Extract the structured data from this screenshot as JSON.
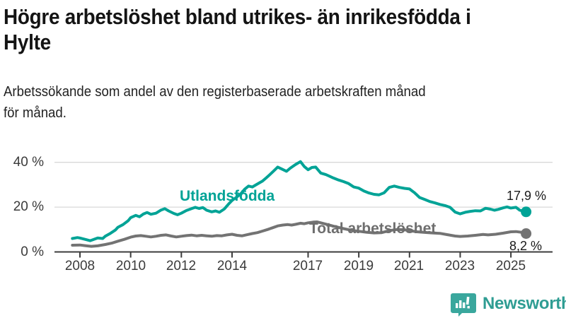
{
  "header": {
    "title_line1": "Högre arbetslöshet bland utrikes- än inrikesfödda i",
    "title_line2": "Hylte",
    "subtitle_line1": "Arbetssökande som andel av den registerbaserade arbetskraften månad",
    "subtitle_line2": "för månad."
  },
  "chart_data": {
    "type": "line",
    "title": "Högre arbetslöshet bland utrikes- än inrikesfödda i Hylte",
    "subtitle": "Arbetssökande som andel av den registerbaserade arbetskraften månad för månad.",
    "xlabel": "",
    "ylabel": "",
    "x_range": [
      2007.7,
      2025.6
    ],
    "ylim": [
      0,
      44
    ],
    "grid": "horizontal",
    "legend_position": "inline-labels",
    "yticks": [
      {
        "value": 0,
        "label": "0 %"
      },
      {
        "value": 20,
        "label": "20 %"
      },
      {
        "value": 40,
        "label": "40 %"
      }
    ],
    "xticks": [
      {
        "year": 2008,
        "label": "2008"
      },
      {
        "year": 2010,
        "label": "2010"
      },
      {
        "year": 2012,
        "label": "2012"
      },
      {
        "year": 2014,
        "label": "2014"
      },
      {
        "year": 2017,
        "label": "2017"
      },
      {
        "year": 2019,
        "label": "2019"
      },
      {
        "year": 2021,
        "label": "2021"
      },
      {
        "year": 2023,
        "label": "2023"
      },
      {
        "year": 2025,
        "label": "2025"
      }
    ],
    "series": [
      {
        "name": "Utlandsfödda",
        "color": "#00a396",
        "end_label": "17,9 %",
        "end_value": 17.9,
        "points": [
          [
            2007.7,
            6.0
          ],
          [
            2007.9,
            6.4
          ],
          [
            2008.0,
            6.2
          ],
          [
            2008.2,
            5.6
          ],
          [
            2008.4,
            5.0
          ],
          [
            2008.5,
            5.4
          ],
          [
            2008.7,
            6.2
          ],
          [
            2008.9,
            6.0
          ],
          [
            2009.0,
            7.0
          ],
          [
            2009.2,
            8.3
          ],
          [
            2009.4,
            9.8
          ],
          [
            2009.5,
            11.0
          ],
          [
            2009.7,
            12.2
          ],
          [
            2009.9,
            13.9
          ],
          [
            2010.0,
            15.3
          ],
          [
            2010.2,
            16.3
          ],
          [
            2010.35,
            15.7
          ],
          [
            2010.5,
            16.9
          ],
          [
            2010.65,
            17.6
          ],
          [
            2010.8,
            16.8
          ],
          [
            2011.0,
            17.3
          ],
          [
            2011.2,
            18.7
          ],
          [
            2011.35,
            19.3
          ],
          [
            2011.5,
            18.3
          ],
          [
            2011.7,
            17.2
          ],
          [
            2011.85,
            16.6
          ],
          [
            2012.0,
            17.3
          ],
          [
            2012.2,
            18.5
          ],
          [
            2012.4,
            19.3
          ],
          [
            2012.55,
            19.9
          ],
          [
            2012.7,
            19.4
          ],
          [
            2012.85,
            19.8
          ],
          [
            2013.0,
            18.6
          ],
          [
            2013.2,
            17.9
          ],
          [
            2013.35,
            18.3
          ],
          [
            2013.5,
            17.7
          ],
          [
            2013.7,
            19.2
          ],
          [
            2013.85,
            21.2
          ],
          [
            2014.0,
            23.0
          ],
          [
            2014.2,
            24.6
          ],
          [
            2014.35,
            26.0
          ],
          [
            2014.5,
            28.0
          ],
          [
            2014.65,
            29.4
          ],
          [
            2014.8,
            29.0
          ],
          [
            2015.0,
            30.3
          ],
          [
            2015.2,
            31.6
          ],
          [
            2015.35,
            33.1
          ],
          [
            2015.5,
            34.6
          ],
          [
            2015.65,
            36.2
          ],
          [
            2015.8,
            37.9
          ],
          [
            2016.0,
            36.8
          ],
          [
            2016.15,
            36.0
          ],
          [
            2016.3,
            37.4
          ],
          [
            2016.5,
            39.0
          ],
          [
            2016.7,
            40.3
          ],
          [
            2016.85,
            38.1
          ],
          [
            2017.0,
            36.7
          ],
          [
            2017.15,
            37.7
          ],
          [
            2017.3,
            37.9
          ],
          [
            2017.5,
            35.2
          ],
          [
            2017.7,
            34.5
          ],
          [
            2017.85,
            33.8
          ],
          [
            2018.0,
            33.0
          ],
          [
            2018.2,
            32.1
          ],
          [
            2018.4,
            31.4
          ],
          [
            2018.6,
            30.5
          ],
          [
            2018.8,
            29.0
          ],
          [
            2019.0,
            28.5
          ],
          [
            2019.2,
            27.2
          ],
          [
            2019.4,
            26.3
          ],
          [
            2019.6,
            25.7
          ],
          [
            2019.8,
            25.5
          ],
          [
            2020.0,
            26.4
          ],
          [
            2020.2,
            28.8
          ],
          [
            2020.4,
            29.4
          ],
          [
            2020.6,
            28.8
          ],
          [
            2020.8,
            28.4
          ],
          [
            2021.0,
            28.1
          ],
          [
            2021.2,
            26.4
          ],
          [
            2021.4,
            24.3
          ],
          [
            2021.6,
            23.4
          ],
          [
            2021.8,
            22.5
          ],
          [
            2022.0,
            21.9
          ],
          [
            2022.2,
            21.2
          ],
          [
            2022.4,
            20.7
          ],
          [
            2022.6,
            19.9
          ],
          [
            2022.8,
            17.8
          ],
          [
            2023.0,
            17.0
          ],
          [
            2023.2,
            17.7
          ],
          [
            2023.4,
            18.1
          ],
          [
            2023.6,
            18.4
          ],
          [
            2023.8,
            18.3
          ],
          [
            2024.0,
            19.5
          ],
          [
            2024.2,
            19.1
          ],
          [
            2024.35,
            18.6
          ],
          [
            2024.5,
            19.0
          ],
          [
            2024.7,
            19.7
          ],
          [
            2024.85,
            20.1
          ],
          [
            2025.0,
            19.6
          ],
          [
            2025.2,
            19.9
          ],
          [
            2025.35,
            18.6
          ],
          [
            2025.6,
            17.9
          ]
        ]
      },
      {
        "name": "Total arbetslöshet",
        "color": "#737373",
        "end_label": "8,2 %",
        "end_value": 8.2,
        "points": [
          [
            2007.7,
            3.0
          ],
          [
            2008.0,
            3.1
          ],
          [
            2008.2,
            2.8
          ],
          [
            2008.45,
            2.5
          ],
          [
            2008.7,
            2.7
          ],
          [
            2009.0,
            3.3
          ],
          [
            2009.25,
            3.9
          ],
          [
            2009.5,
            4.8
          ],
          [
            2009.75,
            5.6
          ],
          [
            2010.0,
            6.6
          ],
          [
            2010.2,
            7.1
          ],
          [
            2010.4,
            7.3
          ],
          [
            2010.6,
            7.0
          ],
          [
            2010.8,
            6.7
          ],
          [
            2011.0,
            7.0
          ],
          [
            2011.2,
            7.4
          ],
          [
            2011.4,
            7.6
          ],
          [
            2011.6,
            7.1
          ],
          [
            2011.8,
            6.7
          ],
          [
            2012.0,
            7.0
          ],
          [
            2012.2,
            7.3
          ],
          [
            2012.4,
            7.5
          ],
          [
            2012.6,
            7.2
          ],
          [
            2012.8,
            7.4
          ],
          [
            2013.0,
            7.2
          ],
          [
            2013.2,
            7.0
          ],
          [
            2013.4,
            7.3
          ],
          [
            2013.6,
            7.2
          ],
          [
            2013.8,
            7.6
          ],
          [
            2014.0,
            7.9
          ],
          [
            2014.2,
            7.4
          ],
          [
            2014.4,
            7.2
          ],
          [
            2014.6,
            7.7
          ],
          [
            2014.8,
            8.2
          ],
          [
            2015.0,
            8.6
          ],
          [
            2015.2,
            9.3
          ],
          [
            2015.4,
            10.0
          ],
          [
            2015.6,
            10.8
          ],
          [
            2015.8,
            11.6
          ],
          [
            2016.0,
            12.0
          ],
          [
            2016.2,
            12.2
          ],
          [
            2016.35,
            12.0
          ],
          [
            2016.5,
            12.3
          ],
          [
            2016.7,
            12.8
          ],
          [
            2016.85,
            12.6
          ],
          [
            2017.0,
            13.0
          ],
          [
            2017.2,
            13.3
          ],
          [
            2017.35,
            13.4
          ],
          [
            2017.5,
            13.0
          ],
          [
            2017.7,
            12.4
          ],
          [
            2017.9,
            11.8
          ],
          [
            2018.1,
            11.2
          ],
          [
            2018.4,
            10.4
          ],
          [
            2018.7,
            9.7
          ],
          [
            2019.0,
            9.2
          ],
          [
            2019.3,
            8.8
          ],
          [
            2019.6,
            8.5
          ],
          [
            2019.9,
            8.6
          ],
          [
            2020.2,
            9.5
          ],
          [
            2020.5,
            10.0
          ],
          [
            2020.8,
            9.9
          ],
          [
            2021.0,
            9.5
          ],
          [
            2021.3,
            9.0
          ],
          [
            2021.6,
            8.7
          ],
          [
            2021.9,
            8.5
          ],
          [
            2022.2,
            8.3
          ],
          [
            2022.5,
            7.7
          ],
          [
            2022.8,
            7.1
          ],
          [
            2023.0,
            6.9
          ],
          [
            2023.3,
            7.1
          ],
          [
            2023.6,
            7.4
          ],
          [
            2023.9,
            7.8
          ],
          [
            2024.1,
            7.6
          ],
          [
            2024.4,
            7.9
          ],
          [
            2024.7,
            8.4
          ],
          [
            2025.0,
            9.0
          ],
          [
            2025.2,
            9.1
          ],
          [
            2025.4,
            8.8
          ],
          [
            2025.6,
            8.2
          ]
        ]
      }
    ]
  },
  "footer": {
    "brand": "Newsworthy",
    "brand_color": "#2f9d93",
    "logo_icon": "bar-chart-speech-bubble"
  },
  "colors": {
    "series_foreign_born": "#00a396",
    "series_total": "#737373",
    "gridline": "#d8d8d8",
    "axis": "#3d3d3d",
    "text": "#141414"
  }
}
